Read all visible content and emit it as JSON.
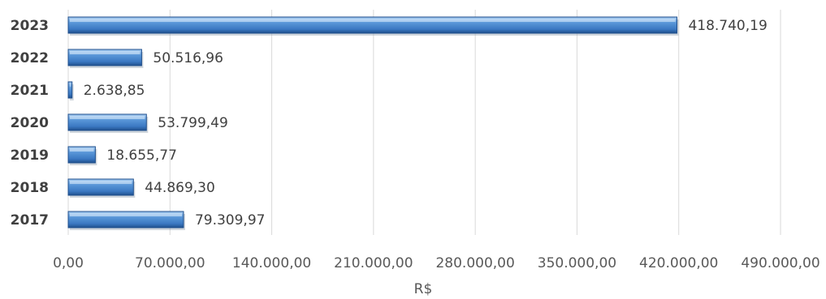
{
  "chart_data": {
    "type": "bar",
    "orientation": "horizontal",
    "categories": [
      "2023",
      "2022",
      "2021",
      "2020",
      "2019",
      "2018",
      "2017"
    ],
    "values": [
      418740.19,
      50516.96,
      2638.85,
      53799.49,
      18655.77,
      44869.3,
      79309.97
    ],
    "data_labels": [
      "418.740,19",
      "50.516,96",
      "2.638,85",
      "53.799,49",
      "18.655,77",
      "44.869,30",
      "79.309,97"
    ],
    "x_ticks": [
      0,
      70000,
      140000,
      210000,
      280000,
      350000,
      420000,
      490000
    ],
    "x_tick_labels": [
      "0,00",
      "70.000,00",
      "140.000,00",
      "210.000,00",
      "280.000,00",
      "350.000,00",
      "420.000,00",
      "490.000,00"
    ],
    "xlabel": "R$",
    "ylabel": "",
    "title": "",
    "xlim": [
      0,
      490000
    ],
    "grid": "vertical",
    "legend": "none",
    "colors": {
      "bar": "#3f83cc",
      "bar_light": "#7fb2e6",
      "bar_dark": "#1f4f8c",
      "grid": "#d9d9d9"
    }
  }
}
